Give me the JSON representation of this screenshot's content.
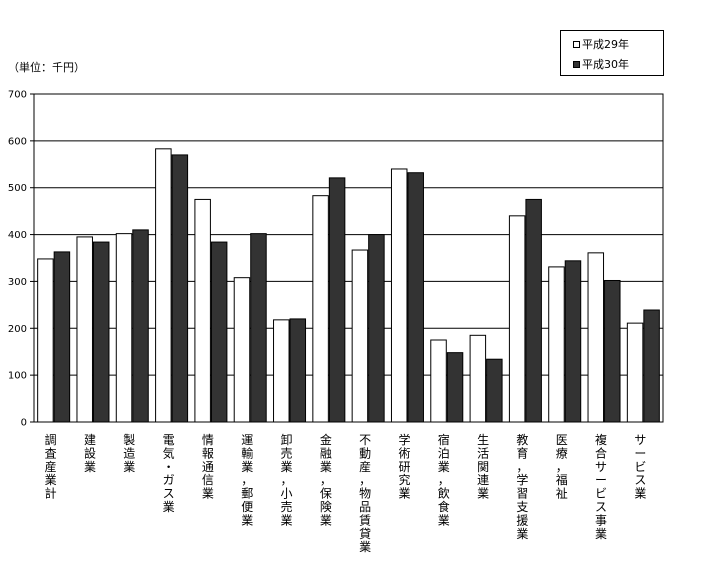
{
  "unit_label": "（単位：千円）",
  "chart_data": {
    "type": "bar",
    "title": "",
    "xlabel": "",
    "ylabel": "",
    "ylim": [
      0,
      700
    ],
    "yticks": [
      0,
      100,
      200,
      300,
      400,
      500,
      600,
      700
    ],
    "grid": true,
    "legend_position": "top-right",
    "categories": [
      "調査産業計",
      "建設業",
      "製造業",
      "電気・ガス業",
      "情報通信業",
      "運輸業，郵便業",
      "卸売業，小売業",
      "金融業，保険業",
      "不動産，物品賃貸業",
      "学術研究業",
      "宿泊業，飲食業",
      "生活関連業",
      "教育，学習支援業",
      "医療，福祉",
      "複合サービス事業",
      "サービス業"
    ],
    "series": [
      {
        "name": "平成29年",
        "color": "#ffffff",
        "values": [
          348,
          395,
          402,
          583,
          475,
          308,
          218,
          483,
          367,
          540,
          175,
          185,
          440,
          331,
          361,
          211
        ]
      },
      {
        "name": "平成30年",
        "color": "#333333",
        "values": [
          363,
          384,
          410,
          570,
          384,
          402,
          220,
          521,
          400,
          532,
          148,
          134,
          475,
          344,
          302,
          239
        ]
      }
    ]
  }
}
